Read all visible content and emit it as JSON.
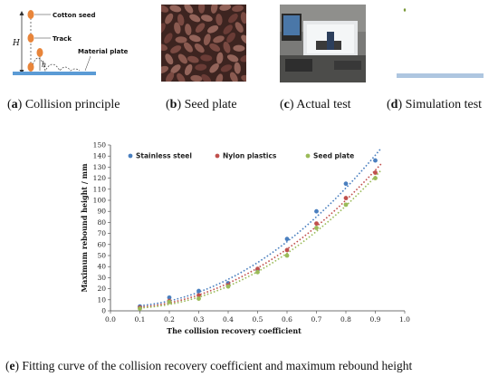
{
  "panels": {
    "a": {
      "letter": "a",
      "caption": "Collision principle",
      "labels": {
        "cotton_seed": "Cotton seed",
        "track": "Track",
        "material_plate": "Material plate",
        "H": "H",
        "h": "h"
      }
    },
    "b": {
      "letter": "b",
      "caption": "Seed plate"
    },
    "c": {
      "letter": "c",
      "caption": "Actual test"
    },
    "d": {
      "letter": "d",
      "caption": "Simulation test"
    },
    "e": {
      "letter": "e",
      "caption": "Fitting curve of the collision recovery coefficient and maximum rebound height"
    }
  },
  "colors": {
    "stainless_steel": "#4a7fbf",
    "nylon_plastics": "#c0504d",
    "seed_plate": "#9bbb59",
    "seed_orange": "#e8853a",
    "plate_blue": "#5b9bd5"
  },
  "chart_data": {
    "type": "scatter",
    "xlabel": "The collision recovery coefficient",
    "ylabel": "Maximum rebound height / mm",
    "xlim": [
      0.0,
      1.0
    ],
    "ylim": [
      0,
      150
    ],
    "xticks": [
      "0.0",
      "0.1",
      "0.2",
      "0.3",
      "0.4",
      "0.5",
      "0.6",
      "0.7",
      "0.8",
      "0.9",
      "1.0"
    ],
    "yticks": [
      "0",
      "10",
      "20",
      "30",
      "40",
      "50",
      "60",
      "70",
      "80",
      "90",
      "100",
      "110",
      "120",
      "130",
      "140",
      "150"
    ],
    "grid": false,
    "legend_position": "top",
    "trendlines": "dotted",
    "x": [
      0.1,
      0.2,
      0.3,
      0.4,
      0.5,
      0.6,
      0.7,
      0.8,
      0.9
    ],
    "series": [
      {
        "name": "Stainless steel",
        "values": [
          4,
          12,
          18,
          25,
          37,
          65,
          90,
          115,
          136
        ]
      },
      {
        "name": "Nylon plastics",
        "values": [
          3,
          9,
          14,
          23,
          38,
          55,
          79,
          102,
          125
        ]
      },
      {
        "name": "Seed plate",
        "values": [
          2,
          8,
          11,
          22,
          35,
          50,
          75,
          96,
          120
        ]
      }
    ]
  }
}
